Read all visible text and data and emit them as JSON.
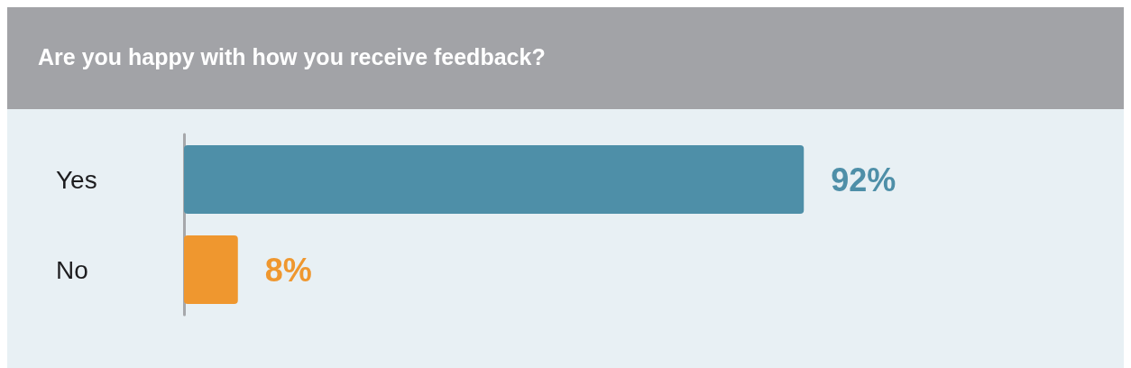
{
  "chart_data": {
    "type": "bar",
    "orientation": "horizontal",
    "title": "Are you happy with how you receive feedback?",
    "categories": [
      "Yes",
      "No"
    ],
    "values": [
      92,
      8
    ],
    "colors": [
      "#4e8fa8",
      "#ef972f"
    ],
    "value_labels": [
      "92%",
      "8%"
    ],
    "grid": false,
    "tick_labels": "y"
  }
}
